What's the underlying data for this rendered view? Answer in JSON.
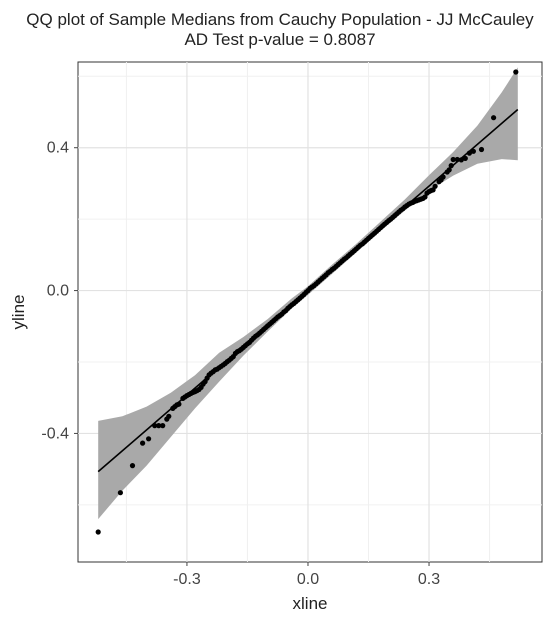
{
  "title_line1": "QQ plot of Sample Medians from Cauchy Population -  JJ McCauley",
  "title_line2": "AD Test p-value = 0.8087",
  "chart_data": {
    "type": "scatter",
    "title": "QQ plot of Sample Medians from Cauchy Population -  JJ McCauley",
    "subtitle": "AD Test p-value = 0.8087",
    "xlabel": "xline",
    "ylabel": "yline",
    "xlim": [
      -0.57,
      0.58
    ],
    "ylim": [
      -0.76,
      0.64
    ],
    "x_ticks": [
      -0.3,
      0.0,
      0.3
    ],
    "x_tick_labels": [
      "-0.3",
      "0.0",
      "0.3"
    ],
    "y_ticks": [
      -0.4,
      0.0,
      0.4
    ],
    "y_tick_labels": [
      "-0.4",
      "0.0",
      "0.4"
    ],
    "grid": true,
    "reference_line": {
      "intercept": 0.0,
      "slope": 0.975
    },
    "confidence_band": {
      "x": [
        -0.52,
        -0.46,
        -0.4,
        -0.34,
        -0.28,
        -0.22,
        -0.16,
        -0.1,
        -0.04,
        0.0,
        0.06,
        0.12,
        0.18,
        0.24,
        0.3,
        0.36,
        0.42,
        0.48,
        0.52
      ],
      "lower": [
        -0.64,
        -0.56,
        -0.49,
        -0.41,
        -0.33,
        -0.255,
        -0.182,
        -0.115,
        -0.05,
        -0.012,
        0.047,
        0.107,
        0.167,
        0.224,
        0.28,
        0.322,
        0.355,
        0.368,
        0.365
      ],
      "upper": [
        -0.365,
        -0.352,
        -0.325,
        -0.286,
        -0.237,
        -0.174,
        -0.13,
        -0.08,
        -0.022,
        0.012,
        0.073,
        0.131,
        0.193,
        0.255,
        0.323,
        0.388,
        0.462,
        0.555,
        0.625
      ]
    },
    "points": [
      [
        -0.52,
        -0.676
      ],
      [
        -0.465,
        -0.566
      ],
      [
        -0.435,
        -0.49
      ],
      [
        -0.41,
        -0.427
      ],
      [
        -0.395,
        -0.415
      ],
      [
        -0.38,
        -0.378
      ],
      [
        -0.37,
        -0.378
      ],
      [
        -0.36,
        -0.378
      ],
      [
        -0.35,
        -0.36
      ],
      [
        -0.345,
        -0.352
      ],
      [
        -0.335,
        -0.33
      ],
      [
        -0.33,
        -0.325
      ],
      [
        -0.325,
        -0.32
      ],
      [
        -0.32,
        -0.318
      ],
      [
        -0.31,
        -0.302
      ],
      [
        -0.305,
        -0.298
      ],
      [
        -0.3,
        -0.294
      ],
      [
        -0.295,
        -0.291
      ],
      [
        -0.29,
        -0.288
      ],
      [
        -0.285,
        -0.285
      ],
      [
        -0.28,
        -0.283
      ],
      [
        -0.275,
        -0.28
      ],
      [
        -0.27,
        -0.277
      ],
      [
        -0.265,
        -0.271
      ],
      [
        -0.26,
        -0.262
      ],
      [
        -0.255,
        -0.255
      ],
      [
        -0.25,
        -0.245
      ],
      [
        -0.245,
        -0.236
      ],
      [
        -0.24,
        -0.231
      ],
      [
        -0.235,
        -0.227
      ],
      [
        -0.23,
        -0.222
      ],
      [
        -0.225,
        -0.22
      ],
      [
        -0.22,
        -0.216
      ],
      [
        -0.215,
        -0.212
      ],
      [
        -0.21,
        -0.208
      ],
      [
        -0.205,
        -0.204
      ],
      [
        -0.2,
        -0.199
      ],
      [
        -0.195,
        -0.195
      ],
      [
        -0.19,
        -0.19
      ],
      [
        -0.185,
        -0.185
      ],
      [
        -0.18,
        -0.176
      ],
      [
        -0.175,
        -0.171
      ],
      [
        -0.17,
        -0.168
      ],
      [
        -0.165,
        -0.164
      ],
      [
        -0.16,
        -0.159
      ],
      [
        -0.155,
        -0.154
      ],
      [
        -0.15,
        -0.149
      ],
      [
        -0.145,
        -0.145
      ],
      [
        -0.14,
        -0.139
      ],
      [
        -0.135,
        -0.133
      ],
      [
        -0.13,
        -0.128
      ],
      [
        -0.125,
        -0.124
      ],
      [
        -0.12,
        -0.119
      ],
      [
        -0.115,
        -0.114
      ],
      [
        -0.11,
        -0.109
      ],
      [
        -0.105,
        -0.104
      ],
      [
        -0.1,
        -0.099
      ],
      [
        -0.095,
        -0.094
      ],
      [
        -0.09,
        -0.089
      ],
      [
        -0.085,
        -0.084
      ],
      [
        -0.08,
        -0.079
      ],
      [
        -0.075,
        -0.074
      ],
      [
        -0.07,
        -0.07
      ],
      [
        -0.065,
        -0.066
      ],
      [
        -0.06,
        -0.06
      ],
      [
        -0.055,
        -0.056
      ],
      [
        -0.05,
        -0.05
      ],
      [
        -0.045,
        -0.045
      ],
      [
        -0.04,
        -0.04
      ],
      [
        -0.035,
        -0.036
      ],
      [
        -0.03,
        -0.031
      ],
      [
        -0.025,
        -0.026
      ],
      [
        -0.02,
        -0.021
      ],
      [
        -0.015,
        -0.016
      ],
      [
        -0.01,
        -0.011
      ],
      [
        -0.005,
        -0.005
      ],
      [
        0.0,
        0.0
      ],
      [
        0.005,
        0.006
      ],
      [
        0.01,
        0.01
      ],
      [
        0.015,
        0.014
      ],
      [
        0.02,
        0.019
      ],
      [
        0.025,
        0.024
      ],
      [
        0.03,
        0.029
      ],
      [
        0.035,
        0.034
      ],
      [
        0.04,
        0.039
      ],
      [
        0.045,
        0.044
      ],
      [
        0.05,
        0.05
      ],
      [
        0.055,
        0.054
      ],
      [
        0.06,
        0.059
      ],
      [
        0.065,
        0.063
      ],
      [
        0.07,
        0.068
      ],
      [
        0.075,
        0.073
      ],
      [
        0.08,
        0.078
      ],
      [
        0.085,
        0.083
      ],
      [
        0.09,
        0.088
      ],
      [
        0.095,
        0.092
      ],
      [
        0.1,
        0.097
      ],
      [
        0.105,
        0.102
      ],
      [
        0.11,
        0.107
      ],
      [
        0.115,
        0.112
      ],
      [
        0.12,
        0.117
      ],
      [
        0.125,
        0.122
      ],
      [
        0.13,
        0.127
      ],
      [
        0.135,
        0.131
      ],
      [
        0.14,
        0.136
      ],
      [
        0.145,
        0.141
      ],
      [
        0.15,
        0.146
      ],
      [
        0.155,
        0.151
      ],
      [
        0.16,
        0.156
      ],
      [
        0.165,
        0.161
      ],
      [
        0.17,
        0.166
      ],
      [
        0.175,
        0.171
      ],
      [
        0.18,
        0.176
      ],
      [
        0.185,
        0.181
      ],
      [
        0.19,
        0.186
      ],
      [
        0.195,
        0.191
      ],
      [
        0.2,
        0.196
      ],
      [
        0.205,
        0.2
      ],
      [
        0.21,
        0.205
      ],
      [
        0.215,
        0.21
      ],
      [
        0.22,
        0.215
      ],
      [
        0.225,
        0.22
      ],
      [
        0.23,
        0.225
      ],
      [
        0.235,
        0.229
      ],
      [
        0.24,
        0.234
      ],
      [
        0.245,
        0.238
      ],
      [
        0.25,
        0.242
      ],
      [
        0.255,
        0.245
      ],
      [
        0.26,
        0.247
      ],
      [
        0.265,
        0.25
      ],
      [
        0.27,
        0.252
      ],
      [
        0.275,
        0.254
      ],
      [
        0.28,
        0.256
      ],
      [
        0.285,
        0.258
      ],
      [
        0.29,
        0.262
      ],
      [
        0.295,
        0.273
      ],
      [
        0.3,
        0.277
      ],
      [
        0.305,
        0.28
      ],
      [
        0.31,
        0.282
      ],
      [
        0.315,
        0.292
      ],
      [
        0.325,
        0.305
      ],
      [
        0.33,
        0.31
      ],
      [
        0.335,
        0.318
      ],
      [
        0.345,
        0.332
      ],
      [
        0.35,
        0.338
      ],
      [
        0.355,
        0.35
      ],
      [
        0.36,
        0.367
      ],
      [
        0.37,
        0.367
      ],
      [
        0.38,
        0.366
      ],
      [
        0.39,
        0.37
      ],
      [
        0.4,
        0.385
      ],
      [
        0.41,
        0.39
      ],
      [
        0.43,
        0.395
      ],
      [
        0.46,
        0.484
      ],
      [
        0.515,
        0.612
      ]
    ]
  }
}
